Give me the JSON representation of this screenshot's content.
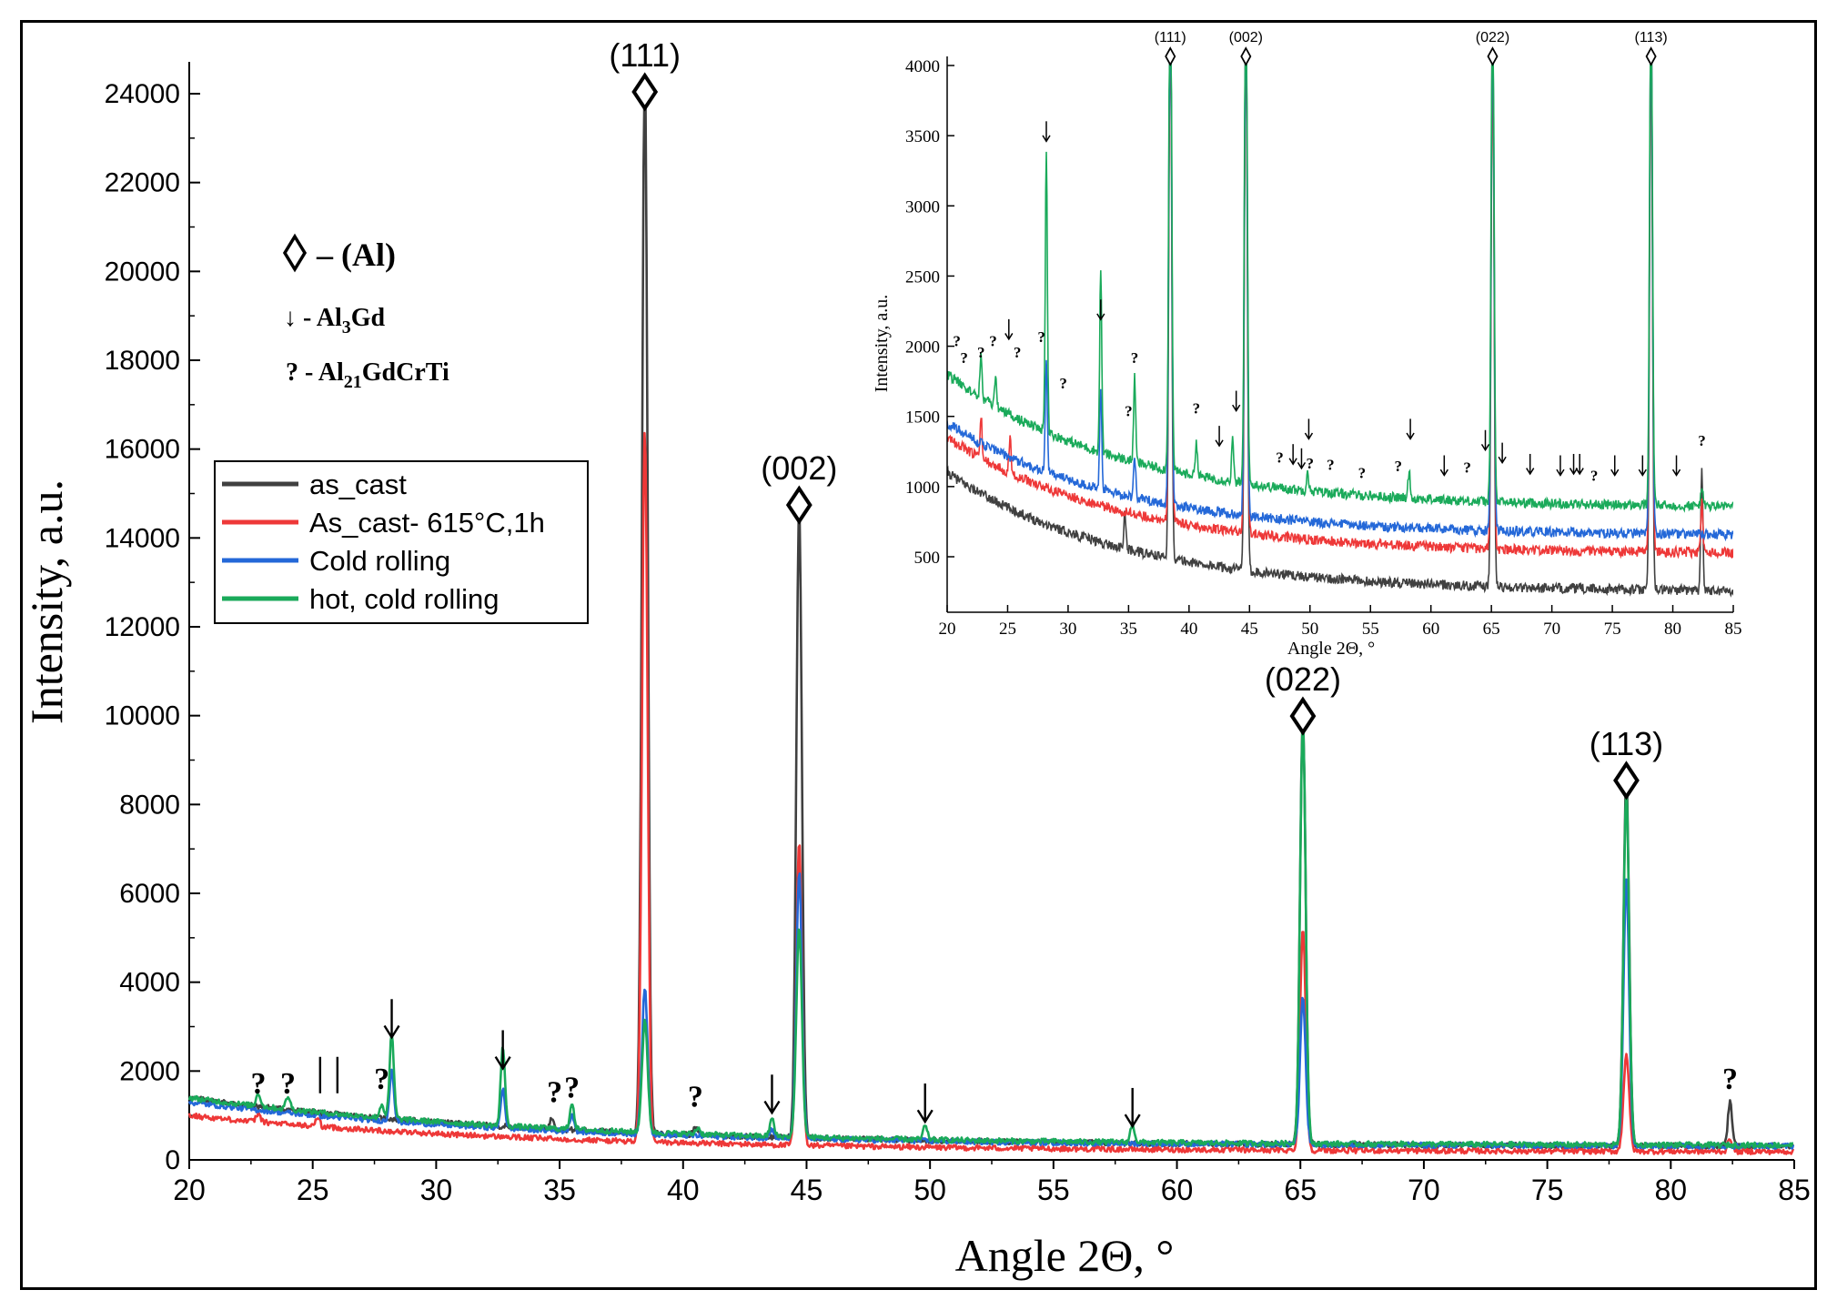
{
  "chart_data": [
    {
      "type": "line",
      "id": "main",
      "title": "",
      "xlabel": "Angle 2Θ, °",
      "ylabel": "Intensity, a.u.",
      "xlim": [
        20,
        85
      ],
      "ylim": [
        0,
        25000
      ],
      "xticks": [
        20,
        25,
        30,
        35,
        40,
        45,
        50,
        55,
        60,
        65,
        70,
        75,
        80,
        85
      ],
      "yticks": [
        0,
        2000,
        4000,
        6000,
        8000,
        10000,
        12000,
        14000,
        16000,
        18000,
        20000,
        22000,
        24000
      ],
      "legend_position": "middle-left",
      "series": [
        {
          "name": "as_cast",
          "color": "#404040",
          "base_start": 1400,
          "base_end": 300,
          "peaks": [
            [
              38.45,
              24000
            ],
            [
              44.7,
              14200
            ],
            [
              65.1,
              9600
            ],
            [
              78.2,
              8300
            ],
            [
              82.4,
              1000
            ],
            [
              34.7,
              250
            ],
            [
              40.5,
              150
            ]
          ]
        },
        {
          "name": "As_cast- 615°C,1h",
          "color": "#ee3838",
          "base_start": 1000,
          "base_end": 180,
          "peaks": [
            [
              38.45,
              16000
            ],
            [
              44.7,
              6800
            ],
            [
              65.1,
              5000
            ],
            [
              78.2,
              2200
            ],
            [
              22.8,
              200
            ],
            [
              25.2,
              200
            ],
            [
              82.4,
              300
            ]
          ]
        },
        {
          "name": "Cold rolling",
          "color": "#2468d8",
          "base_start": 1300,
          "base_end": 300,
          "peaks": [
            [
              38.45,
              3300
            ],
            [
              44.7,
              6000
            ],
            [
              65.1,
              3300
            ],
            [
              78.2,
              6000
            ],
            [
              28.2,
              1200
            ],
            [
              32.7,
              900
            ],
            [
              35.5,
              400
            ],
            [
              43.6,
              200
            ]
          ]
        },
        {
          "name": "hot, cold rolling",
          "color": "#1aaa5a",
          "base_start": 1400,
          "base_end": 320,
          "peaks": [
            [
              38.45,
              2500
            ],
            [
              44.7,
              4700
            ],
            [
              65.1,
              9500
            ],
            [
              78.2,
              8000
            ],
            [
              28.2,
              1900
            ],
            [
              32.7,
              1800
            ],
            [
              27.8,
              300
            ],
            [
              35.5,
              600
            ],
            [
              22.8,
              300
            ],
            [
              24.0,
              300
            ],
            [
              40.6,
              150
            ],
            [
              43.6,
              400
            ],
            [
              49.8,
              300
            ],
            [
              58.2,
              400
            ]
          ]
        }
      ],
      "peak_labels": [
        {
          "text": "(111)",
          "x": 38.45,
          "y": 24000
        },
        {
          "text": "(002)",
          "x": 44.7,
          "y": 14700
        },
        {
          "text": "(022)",
          "x": 65.1,
          "y": 9950
        },
        {
          "text": "(113)",
          "x": 78.2,
          "y": 8500
        }
      ],
      "question_marks": [
        [
          22.8,
          1500
        ],
        [
          24.0,
          1500
        ],
        [
          27.8,
          1600
        ],
        [
          34.8,
          1300
        ],
        [
          35.5,
          1400
        ],
        [
          40.5,
          1200
        ],
        [
          82.4,
          1600
        ]
      ],
      "arrows": [
        [
          28.2,
          2800
        ],
        [
          32.7,
          2100
        ],
        [
          43.6,
          1100
        ],
        [
          49.8,
          900
        ],
        [
          58.2,
          800
        ]
      ],
      "bars": [
        [
          25.3,
          1500
        ],
        [
          26.0,
          1500
        ]
      ],
      "phase_legend": [
        {
          "symbol": "diamond",
          "prefix": "– (",
          "main": "Al",
          "suffix": ")"
        },
        {
          "symbol": "↓",
          "prefix": " - Al",
          "sub": "3",
          "suffix": "Gd"
        },
        {
          "symbol": "?",
          "prefix": " - Al",
          "sub": "21",
          "suffix": "GdCrTi"
        }
      ]
    },
    {
      "type": "line",
      "id": "inset",
      "title": "",
      "xlabel": "Angle 2Θ, °",
      "ylabel": "Intensity, a.u.",
      "xlim": [
        20,
        85
      ],
      "ylim": [
        200,
        4000
      ],
      "xticks": [
        20,
        25,
        30,
        35,
        40,
        45,
        50,
        55,
        60,
        65,
        70,
        75,
        80,
        85
      ],
      "yticks": [
        500,
        1000,
        1500,
        2000,
        2500,
        3000,
        3500,
        4000
      ],
      "series": [
        {
          "name": "as_cast",
          "color": "#404040",
          "base_start": 1100,
          "base_end": 250,
          "peaks": [
            [
              38.45,
              4000
            ],
            [
              44.7,
              4000
            ],
            [
              65.1,
              4000
            ],
            [
              78.2,
              4000
            ],
            [
              82.4,
              900
            ],
            [
              34.7,
              250
            ]
          ]
        },
        {
          "name": "As_cast- 615°C,1h",
          "color": "#ee3838",
          "base_start": 1350,
          "base_end": 520,
          "peaks": [
            [
              38.45,
              4000
            ],
            [
              44.7,
              4000
            ],
            [
              65.1,
              4000
            ],
            [
              78.2,
              4000
            ],
            [
              22.8,
              300
            ],
            [
              25.2,
              250
            ],
            [
              82.4,
              350
            ]
          ]
        },
        {
          "name": "Cold rolling",
          "color": "#2468d8",
          "base_start": 1450,
          "base_end": 650,
          "peaks": [
            [
              38.45,
              4000
            ],
            [
              44.7,
              4000
            ],
            [
              65.1,
              4000
            ],
            [
              78.2,
              4000
            ],
            [
              28.2,
              800
            ],
            [
              32.7,
              700
            ],
            [
              35.5,
              300
            ]
          ]
        },
        {
          "name": "hot, cold rolling",
          "color": "#1aaa5a",
          "base_start": 1800,
          "base_end": 850,
          "peaks": [
            [
              38.45,
              4000
            ],
            [
              44.7,
              4000
            ],
            [
              65.1,
              4000
            ],
            [
              78.2,
              4000
            ],
            [
              28.2,
              2000
            ],
            [
              32.7,
              1300
            ],
            [
              35.5,
              600
            ],
            [
              22.8,
              300
            ],
            [
              24.0,
              200
            ],
            [
              40.6,
              250
            ],
            [
              43.6,
              300
            ],
            [
              49.8,
              150
            ],
            [
              58.2,
              200
            ],
            [
              82.4,
              150
            ]
          ]
        }
      ],
      "peak_labels": [
        {
          "text": "(111)",
          "x": 38.45
        },
        {
          "text": "(002)",
          "x": 44.7
        },
        {
          "text": "(022)",
          "x": 65.1
        },
        {
          "text": "(113)",
          "x": 78.2
        }
      ],
      "question_marks": [
        [
          20.8,
          2000
        ],
        [
          21.4,
          1880
        ],
        [
          22.8,
          1920
        ],
        [
          23.8,
          2000
        ],
        [
          25.8,
          1920
        ],
        [
          27.8,
          2030
        ],
        [
          29.6,
          1700
        ],
        [
          35.5,
          1880
        ],
        [
          35.0,
          1500
        ],
        [
          40.6,
          1520
        ],
        [
          47.5,
          1170
        ],
        [
          50.0,
          1130
        ],
        [
          51.7,
          1120
        ],
        [
          54.3,
          1060
        ],
        [
          57.3,
          1110
        ],
        [
          63.0,
          1100
        ],
        [
          73.5,
          1040
        ],
        [
          82.4,
          1290
        ]
      ],
      "arrows": [
        [
          25.1,
          2050
        ],
        [
          28.2,
          3460
        ],
        [
          32.7,
          2190
        ],
        [
          42.5,
          1290
        ],
        [
          43.9,
          1540
        ],
        [
          48.6,
          1160
        ],
        [
          49.3,
          1130
        ],
        [
          49.9,
          1340
        ],
        [
          58.3,
          1340
        ],
        [
          61.1,
          1080
        ],
        [
          64.5,
          1260
        ],
        [
          65.9,
          1170
        ],
        [
          68.2,
          1090
        ],
        [
          70.7,
          1080
        ],
        [
          71.8,
          1090
        ],
        [
          72.3,
          1090
        ],
        [
          75.2,
          1080
        ],
        [
          77.5,
          1080
        ],
        [
          80.3,
          1080
        ]
      ]
    }
  ]
}
